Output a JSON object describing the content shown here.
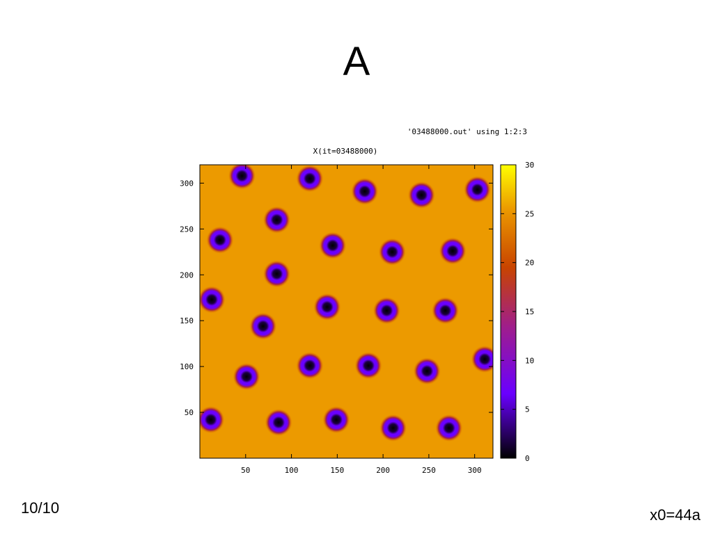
{
  "slide": {
    "title": "A",
    "page_number": "10/10",
    "footer_note": "x0=44a"
  },
  "chart_data": {
    "type": "heatmap",
    "title": "X(it=03488000)",
    "legend_key": "'03488000.out' using 1:2:3",
    "xlabel": "",
    "ylabel": "",
    "xlim": [
      0,
      320
    ],
    "ylim": [
      0,
      320
    ],
    "xticks": [
      50,
      100,
      150,
      200,
      250,
      300
    ],
    "yticks": [
      50,
      100,
      150,
      200,
      250,
      300
    ],
    "colorbar": {
      "range": [
        0,
        30
      ],
      "ticks": [
        0,
        5,
        10,
        15,
        20,
        25,
        30
      ],
      "colors": [
        "#000000",
        "#6a00ff",
        "#c01e00",
        "#ec9a00",
        "#ffff00"
      ]
    },
    "background_value": 26,
    "spot_core_value": 0,
    "spot_ring_value": 9,
    "grid": false,
    "spots": [
      {
        "x": 46,
        "y": 308
      },
      {
        "x": 120,
        "y": 305
      },
      {
        "x": 180,
        "y": 291
      },
      {
        "x": 242,
        "y": 287
      },
      {
        "x": 303,
        "y": 293
      },
      {
        "x": 84,
        "y": 260
      },
      {
        "x": 22,
        "y": 238
      },
      {
        "x": 145,
        "y": 232
      },
      {
        "x": 210,
        "y": 225
      },
      {
        "x": 276,
        "y": 226
      },
      {
        "x": 84,
        "y": 201
      },
      {
        "x": 13,
        "y": 173
      },
      {
        "x": 139,
        "y": 165
      },
      {
        "x": 204,
        "y": 161
      },
      {
        "x": 268,
        "y": 161
      },
      {
        "x": 69,
        "y": 144
      },
      {
        "x": 120,
        "y": 101
      },
      {
        "x": 184,
        "y": 101
      },
      {
        "x": 248,
        "y": 95
      },
      {
        "x": 311,
        "y": 108
      },
      {
        "x": 51,
        "y": 89
      },
      {
        "x": 12,
        "y": 42
      },
      {
        "x": 86,
        "y": 39
      },
      {
        "x": 149,
        "y": 42
      },
      {
        "x": 211,
        "y": 33
      },
      {
        "x": 272,
        "y": 33
      }
    ]
  }
}
